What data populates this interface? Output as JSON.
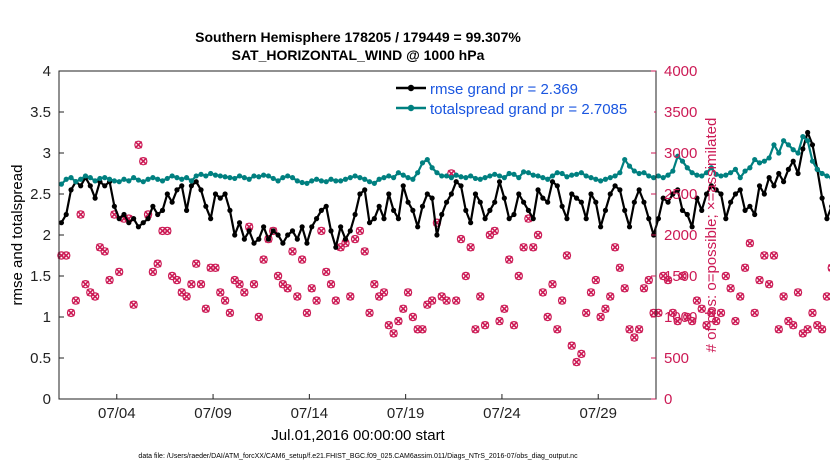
{
  "chart_data": {
    "type": "line",
    "title": "Southern Hemisphere 178205 / 179449 = 99.307%",
    "subtitle": "SAT_HORIZONTAL_WIND @ 1000 hPa",
    "xlabel": "Jul.01,2016 00:00:00 start",
    "ylabel_left": "rmse and totalspread",
    "ylabel_right": "# of obs: o=possible; ×=assimilated",
    "ylim_left": [
      0,
      4
    ],
    "ylim_right": [
      0,
      4000
    ],
    "xlim_days": [
      0,
      31
    ],
    "x_tick_labels": [
      "07/04",
      "07/09",
      "07/14",
      "07/19",
      "07/24",
      "07/29"
    ],
    "x_tick_days": [
      3,
      8,
      13,
      18,
      23,
      28
    ],
    "y_ticks_left": [
      "0",
      "0.5",
      "1",
      "1.5",
      "2",
      "2.5",
      "3",
      "3.5",
      "4"
    ],
    "y_ticks_right": [
      "0",
      "500",
      "1000",
      "1500",
      "2000",
      "2500",
      "3000",
      "3500",
      "4000"
    ],
    "grid": false,
    "legend_position": "top-right",
    "series": [
      {
        "name": "rmse grand pr = 2.369",
        "color": "#000000",
        "axis": "left",
        "step_days": 0.25,
        "values": [
          2.15,
          2.25,
          2.55,
          2.65,
          2.6,
          2.7,
          2.6,
          2.45,
          2.65,
          2.6,
          2.65,
          2.35,
          2.2,
          2.25,
          2.15,
          2.2,
          2.1,
          2.15,
          2.2,
          2.35,
          2.25,
          2.3,
          2.5,
          2.4,
          2.55,
          2.6,
          2.3,
          2.6,
          2.65,
          2.55,
          2.35,
          2.2,
          2.5,
          2.45,
          2.5,
          2.3,
          2.0,
          2.15,
          1.95,
          2.05,
          1.9,
          1.95,
          2.1,
          1.95,
          2.05,
          2.0,
          1.9,
          2.0,
          2.05,
          1.95,
          2.1,
          1.9,
          2.1,
          2.2,
          2.3,
          2.35,
          2.05,
          1.85,
          2.1,
          1.95,
          2.05,
          2.25,
          2.5,
          2.55,
          2.15,
          2.2,
          2.35,
          2.2,
          2.5,
          2.3,
          2.2,
          2.6,
          2.4,
          2.3,
          2.1,
          2.35,
          2.5,
          2.45,
          2.0,
          2.25,
          2.4,
          2.5,
          2.65,
          2.6,
          2.3,
          2.15,
          2.5,
          2.4,
          2.2,
          2.3,
          2.4,
          2.65,
          2.45,
          2.2,
          2.25,
          2.5,
          2.4,
          2.3,
          2.2,
          2.55,
          2.45,
          2.4,
          2.65,
          2.6,
          2.35,
          2.2,
          2.5,
          2.45,
          2.4,
          2.2,
          2.5,
          2.4,
          2.1,
          2.3,
          2.5,
          2.6,
          2.55,
          2.3,
          2.1,
          2.4,
          2.55,
          2.4,
          2.2,
          2.0,
          2.2,
          2.45,
          2.4,
          2.5,
          2.55,
          2.3,
          2.25,
          2.1,
          2.45,
          2.3,
          2.5,
          2.6,
          2.55,
          2.5,
          2.2,
          2.4,
          2.5,
          2.55,
          2.3,
          2.35,
          2.25,
          2.6,
          2.5,
          2.7,
          2.6,
          2.75,
          2.65,
          2.8,
          2.9,
          2.75,
          3.05,
          3.25,
          3.1,
          2.8,
          2.45,
          2.2,
          2.35,
          2.5,
          2.55
        ]
      },
      {
        "name": "totalspread grand pr = 2.7085",
        "color": "#008080",
        "axis": "left",
        "step_days": 0.25,
        "values": [
          2.62,
          2.68,
          2.7,
          2.65,
          2.68,
          2.72,
          2.7,
          2.66,
          2.69,
          2.7,
          2.68,
          2.66,
          2.65,
          2.68,
          2.66,
          2.7,
          2.67,
          2.65,
          2.68,
          2.7,
          2.68,
          2.66,
          2.69,
          2.72,
          2.7,
          2.68,
          2.7,
          2.66,
          2.72,
          2.74,
          2.72,
          2.75,
          2.73,
          2.72,
          2.71,
          2.7,
          2.69,
          2.72,
          2.7,
          2.68,
          2.72,
          2.71,
          2.73,
          2.72,
          2.69,
          2.66,
          2.7,
          2.72,
          2.7,
          2.66,
          2.64,
          2.63,
          2.66,
          2.68,
          2.66,
          2.65,
          2.68,
          2.66,
          2.66,
          2.68,
          2.7,
          2.72,
          2.7,
          2.68,
          2.65,
          2.63,
          2.68,
          2.7,
          2.72,
          2.7,
          2.76,
          2.73,
          2.7,
          2.68,
          2.76,
          2.88,
          2.92,
          2.82,
          2.76,
          2.72,
          2.72,
          2.7,
          2.73,
          2.71,
          2.7,
          2.72,
          2.69,
          2.68,
          2.7,
          2.72,
          2.74,
          2.72,
          2.7,
          2.75,
          2.74,
          2.7,
          2.77,
          2.76,
          2.73,
          2.72,
          2.7,
          2.68,
          2.72,
          2.76,
          2.75,
          2.71,
          2.73,
          2.74,
          2.76,
          2.72,
          2.7,
          2.68,
          2.66,
          2.68,
          2.7,
          2.72,
          2.76,
          2.92,
          2.84,
          2.78,
          2.75,
          2.76,
          2.72,
          2.7,
          2.72,
          2.7,
          2.73,
          2.78,
          2.96,
          2.9,
          2.82,
          2.76,
          2.73,
          2.72,
          2.76,
          2.82,
          2.74,
          2.72,
          2.73,
          2.76,
          2.8,
          2.7,
          2.78,
          2.82,
          2.92,
          2.88,
          2.9,
          2.94,
          3.1,
          3.0,
          3.15,
          3.1,
          3.04,
          3.0,
          3.2,
          3.15,
          2.9,
          2.8,
          2.75,
          2.72,
          2.7
        ]
      },
      {
        "name": "possible",
        "color": "#cc1a55",
        "axis": "right",
        "marker": "o",
        "step_days": 0.25,
        "values": [
          1750,
          1750,
          1050,
          1200,
          2250,
          1400,
          1300,
          1250,
          1850,
          1800,
          1450,
          2250,
          1550,
          2200,
          2200,
          1150,
          3100,
          2900,
          2250,
          1550,
          1650,
          2050,
          2050,
          1500,
          1450,
          1300,
          1250,
          1400,
          1650,
          1400,
          1100,
          1600,
          1600,
          1300,
          1200,
          1050,
          1450,
          1400,
          1300,
          2100,
          1400,
          1000,
          1700,
          1950,
          2050,
          1500,
          1400,
          1350,
          1800,
          1250,
          1700,
          1050,
          1350,
          1200,
          2050,
          1550,
          1400,
          1200,
          1850,
          1900,
          1250,
          1950,
          2050,
          1800,
          1050,
          1400,
          1250,
          1300,
          900,
          800,
          950,
          1100,
          1300,
          1000,
          850,
          850,
          1150,
          1200,
          2150,
          1250,
          1200,
          2750,
          1200,
          1950,
          1500,
          1850,
          850,
          1250,
          900,
          2000,
          2050,
          950,
          1100,
          1700,
          900,
          1500,
          1850,
          2200,
          1850,
          2000,
          1300,
          1000,
          1400,
          850,
          1200,
          1750,
          650,
          450,
          550,
          1050,
          1300,
          1450,
          1000,
          1100,
          1250,
          1850,
          1600,
          1350,
          850,
          750,
          850,
          1350,
          1450,
          1050,
          1050,
          1500,
          1450,
          1050,
          950,
          1500,
          1000,
          950,
          1200,
          1100,
          900,
          1050,
          950,
          1050,
          1500,
          1350,
          950,
          1250,
          1600,
          1900,
          1050,
          1450,
          1750,
          1400,
          1750,
          850,
          1250,
          950,
          900,
          1300,
          800,
          850,
          1050,
          900,
          850,
          1250,
          1600,
          950,
          900,
          0
        ]
      },
      {
        "name": "assimilated",
        "color": "#cc1a55",
        "axis": "right",
        "marker": "x",
        "step_days": 0.25,
        "values": [
          1750,
          1750,
          1050,
          1200,
          2250,
          1400,
          1300,
          1250,
          1850,
          1800,
          1450,
          2250,
          1550,
          2200,
          2200,
          1150,
          3100,
          2900,
          2250,
          1550,
          1650,
          2050,
          2050,
          1500,
          1450,
          1300,
          1250,
          1400,
          1650,
          1400,
          1100,
          1600,
          1600,
          1300,
          1200,
          1050,
          1450,
          1400,
          1300,
          2100,
          1400,
          1000,
          1700,
          1950,
          2050,
          1500,
          1400,
          1350,
          1800,
          1250,
          1700,
          1050,
          1350,
          1200,
          2050,
          1550,
          1400,
          1200,
          1850,
          1900,
          1250,
          1950,
          2050,
          1800,
          1050,
          1400,
          1250,
          1300,
          900,
          800,
          950,
          1100,
          1300,
          1000,
          850,
          850,
          1150,
          1200,
          2150,
          1250,
          1200,
          2750,
          1200,
          1950,
          1500,
          1850,
          850,
          1250,
          900,
          2000,
          2050,
          950,
          1100,
          1700,
          900,
          1500,
          1850,
          2200,
          1850,
          2000,
          1300,
          1000,
          1400,
          850,
          1200,
          1750,
          650,
          450,
          550,
          1050,
          1300,
          1450,
          1000,
          1100,
          1250,
          1850,
          1600,
          1350,
          850,
          750,
          850,
          1350,
          1450,
          1050,
          1050,
          1500,
          1450,
          1050,
          950,
          1500,
          1000,
          950,
          1200,
          1100,
          900,
          1050,
          950,
          1050,
          1500,
          1350,
          950,
          1250,
          1600,
          1900,
          1050,
          1450,
          1750,
          1400,
          1750,
          850,
          1250,
          950,
          900,
          1300,
          800,
          850,
          1050,
          900,
          850,
          1250,
          1600,
          950,
          900,
          0
        ]
      }
    ]
  },
  "footer": "data file: /Users/raeder/DAI/ATM_forcXX/CAM6_setup/f.e21.FHIST_BGC.f09_025.CAM6assim.011/Diags_NTrS_2016-07/obs_diag_output.nc"
}
